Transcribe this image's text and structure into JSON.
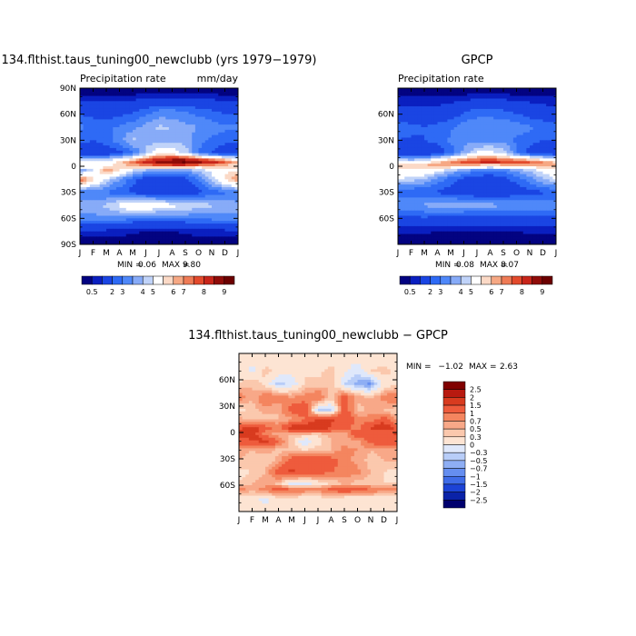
{
  "chart_data": [
    {
      "type": "heatmap",
      "title": "134.flthist.taus_tuning00_newclubb (yrs 1979−1979)",
      "subtitle_left": "Precipitation rate",
      "units": "mm/day",
      "x_ticks": [
        "J",
        "F",
        "M",
        "A",
        "M",
        "J",
        "J",
        "A",
        "S",
        "O",
        "N",
        "D",
        "J"
      ],
      "y_ticks": [
        "90N",
        "60N",
        "30N",
        "0",
        "30S",
        "60S",
        "90S"
      ],
      "stats": {
        "min_label": "MIN =",
        "min": "0.06",
        "max_label": "MAX =",
        "max": "9.80"
      },
      "colorbar_labels": [
        "0.5",
        "2",
        "3",
        "4",
        "5",
        "6",
        "7",
        "8",
        "9"
      ],
      "colors": [
        "#030381",
        "#0a1fc0",
        "#1a45e3",
        "#2e6af5",
        "#4f88f9",
        "#87abf8",
        "#c0d3f9",
        "#ffffff",
        "#fbd9c6",
        "#f6a884",
        "#ef7b56",
        "#e34a2c",
        "#c8251a",
        "#900c09",
        "#6c0000"
      ],
      "series": {
        "rows": [
          {
            "lat": 85,
            "values": [
              0.3,
              0.3,
              0.3,
              0.3,
              0.3,
              0.3,
              0.3,
              0.3,
              0.3,
              0.3,
              0.3,
              0.3,
              0.3
            ]
          },
          {
            "lat": 65,
            "values": [
              1.8,
              1.6,
              1.6,
              1.6,
              1.8,
              2.2,
              2.5,
              2.5,
              2.4,
              2.2,
              2.0,
              1.8,
              1.8
            ]
          },
          {
            "lat": 45,
            "values": [
              2.6,
              2.4,
              2.3,
              2.6,
              2.8,
              3.2,
              3.6,
              3.5,
              3.2,
              3.0,
              2.8,
              2.6,
              2.6
            ]
          },
          {
            "lat": 30,
            "values": [
              2.2,
              2.0,
              2.3,
              2.8,
              3.6,
              3.4,
              3.1,
              3.2,
              3.3,
              2.6,
              2.4,
              2.2,
              2.2
            ]
          },
          {
            "lat": 15,
            "values": [
              1.5,
              1.3,
              1.5,
              1.8,
              2.3,
              3.5,
              4.6,
              4.5,
              3.8,
              2.5,
              1.9,
              1.5,
              1.5
            ]
          },
          {
            "lat": 5,
            "values": [
              4.8,
              4.6,
              4.4,
              5.2,
              6.2,
              7.6,
              8.6,
              9.2,
              9.4,
              8.6,
              7.6,
              6.8,
              5.5
            ]
          },
          {
            "lat": 0,
            "values": [
              4.5,
              4.3,
              4.8,
              5.2,
              5.6,
              5.8,
              5.9,
              6.1,
              6.0,
              5.6,
              5.5,
              5.2,
              5.0
            ]
          },
          {
            "lat": -5,
            "values": [
              3.0,
              4.0,
              6.2,
              5.0,
              3.8,
              3.2,
              2.9,
              2.9,
              3.0,
              3.5,
              4.2,
              4.8,
              5.0
            ]
          },
          {
            "lat": -15,
            "values": [
              6.6,
              5.2,
              3.8,
              3.0,
              2.2,
              1.6,
              1.3,
              1.3,
              1.8,
              2.5,
              3.6,
              5.0,
              6.2
            ]
          },
          {
            "lat": -30,
            "values": [
              2.5,
              2.5,
              2.4,
              2.2,
              1.8,
              1.5,
              1.4,
              1.5,
              1.6,
              1.8,
              2.2,
              2.4,
              2.5
            ]
          },
          {
            "lat": -45,
            "values": [
              3.2,
              3.4,
              3.6,
              4.2,
              4.8,
              4.8,
              4.5,
              4.2,
              4.0,
              3.8,
              3.6,
              3.3,
              3.2
            ]
          },
          {
            "lat": -60,
            "values": [
              2.8,
              2.8,
              2.9,
              2.8,
              2.6,
              2.4,
              2.4,
              2.5,
              2.6,
              2.6,
              2.7,
              2.8,
              2.8
            ]
          },
          {
            "lat": -75,
            "values": [
              0.8,
              0.8,
              0.8,
              0.7,
              0.6,
              0.5,
              0.5,
              0.5,
              0.6,
              0.7,
              0.8,
              0.8,
              0.8
            ]
          },
          {
            "lat": -88,
            "values": [
              0.2,
              0.2,
              0.2,
              0.2,
              0.2,
              0.2,
              0.2,
              0.2,
              0.2,
              0.2,
              0.2,
              0.2,
              0.2
            ]
          }
        ]
      }
    },
    {
      "type": "heatmap",
      "title": "GPCP",
      "subtitle_left": "Precipitation rate",
      "x_ticks": [
        "J",
        "F",
        "M",
        "A",
        "M",
        "J",
        "J",
        "A",
        "S",
        "O",
        "N",
        "D",
        "J"
      ],
      "y_ticks": [
        "60N",
        "30N",
        "0",
        "30S",
        "60S"
      ],
      "stats": {
        "min_label": "MIN =",
        "min": "0.08",
        "max_label": "MAX =",
        "max": "8.07"
      },
      "colorbar_labels": [
        "0.5",
        "2",
        "3",
        "4",
        "5",
        "6",
        "7",
        "8",
        "9"
      ],
      "colors": [
        "#030381",
        "#0a1fc0",
        "#1a45e3",
        "#2e6af5",
        "#4f88f9",
        "#87abf8",
        "#c0d3f9",
        "#ffffff",
        "#fbd9c6",
        "#f6a884",
        "#ef7b56",
        "#e34a2c",
        "#c8251a",
        "#900c09",
        "#6c0000"
      ],
      "series": {
        "rows": [
          {
            "lat": 85,
            "values": [
              0.3,
              0.3,
              0.3,
              0.3,
              0.3,
              0.3,
              0.3,
              0.3,
              0.3,
              0.3,
              0.3,
              0.3,
              0.3
            ]
          },
          {
            "lat": 65,
            "values": [
              1.2,
              1.1,
              1.1,
              1.2,
              1.4,
              1.8,
              2.1,
              2.1,
              2.0,
              1.8,
              1.5,
              1.3,
              1.2
            ]
          },
          {
            "lat": 45,
            "values": [
              2.4,
              2.2,
              2.0,
              2.2,
              2.4,
              2.8,
              3.0,
              3.0,
              2.9,
              2.8,
              2.6,
              2.4,
              2.4
            ]
          },
          {
            "lat": 30,
            "values": [
              2.0,
              1.9,
              2.0,
              2.2,
              2.6,
              2.8,
              2.7,
              2.8,
              2.8,
              2.4,
              2.2,
              2.0,
              2.0
            ]
          },
          {
            "lat": 15,
            "values": [
              1.4,
              1.2,
              1.3,
              1.6,
              2.2,
              3.2,
              4.2,
              4.3,
              3.8,
              2.6,
              1.8,
              1.5,
              1.4
            ]
          },
          {
            "lat": 5,
            "values": [
              4.4,
              4.2,
              4.5,
              5.3,
              6.1,
              6.8,
              7.2,
              7.4,
              7.2,
              7.0,
              6.6,
              6.0,
              5.2
            ]
          },
          {
            "lat": 0,
            "values": [
              5.8,
              5.6,
              5.8,
              5.9,
              5.6,
              5.2,
              4.8,
              4.6,
              4.8,
              5.0,
              5.4,
              5.6,
              5.8
            ]
          },
          {
            "lat": -5,
            "values": [
              4.8,
              4.6,
              4.7,
              4.2,
              3.5,
              3.0,
              2.6,
              2.4,
              2.6,
              3.0,
              3.6,
              4.2,
              4.8
            ]
          },
          {
            "lat": -15,
            "values": [
              4.0,
              3.8,
              3.4,
              2.8,
              2.2,
              1.8,
              1.6,
              1.6,
              1.8,
              2.2,
              2.8,
              3.4,
              4.0
            ]
          },
          {
            "lat": -30,
            "values": [
              2.0,
              2.0,
              2.0,
              1.9,
              1.7,
              1.5,
              1.4,
              1.4,
              1.5,
              1.6,
              1.8,
              1.9,
              2.0
            ]
          },
          {
            "lat": -45,
            "values": [
              3.0,
              3.0,
              3.1,
              3.2,
              3.4,
              3.4,
              3.3,
              3.2,
              3.1,
              3.0,
              3.0,
              3.0,
              3.0
            ]
          },
          {
            "lat": -60,
            "values": [
              1.8,
              1.8,
              1.9,
              1.8,
              1.7,
              1.6,
              1.6,
              1.7,
              1.7,
              1.7,
              1.8,
              1.8,
              1.8
            ]
          },
          {
            "lat": -75,
            "values": [
              0.6,
              0.6,
              0.6,
              0.5,
              0.5,
              0.4,
              0.4,
              0.4,
              0.5,
              0.5,
              0.6,
              0.6,
              0.6
            ]
          },
          {
            "lat": -88,
            "values": [
              0.2,
              0.2,
              0.2,
              0.2,
              0.2,
              0.2,
              0.2,
              0.2,
              0.2,
              0.2,
              0.2,
              0.2,
              0.2
            ]
          }
        ]
      }
    },
    {
      "type": "heatmap",
      "title": "134.flthist.taus_tuning00_newclubb − GPCP",
      "x_ticks": [
        "J",
        "F",
        "M",
        "A",
        "M",
        "J",
        "J",
        "A",
        "S",
        "O",
        "N",
        "D",
        "J"
      ],
      "y_ticks": [
        "60N",
        "30N",
        "0",
        "30S",
        "60S"
      ],
      "stats": {
        "min_label": "MIN =",
        "min": "−1.02",
        "max_label": "MAX =",
        "max": "2.63"
      },
      "colorbar_labels": [
        "2.5",
        "2",
        "1.5",
        "1",
        "0.7",
        "0.5",
        "0.3",
        "0",
        "−0.3",
        "−0.5",
        "−0.7",
        "−1",
        "−1.5",
        "−2",
        "−2.5"
      ],
      "colors": [
        "#800000",
        "#b81a10",
        "#d83b1f",
        "#ee5b3c",
        "#f4855f",
        "#f8a888",
        "#fbc8ad",
        "#fde4d3",
        "#dfe8fb",
        "#b8cdf8",
        "#8eaef4",
        "#658ef0",
        "#3f6ce8",
        "#1c43d6",
        "#0a22a8",
        "#00006e"
      ],
      "series": {
        "rows": [
          {
            "lat": 85,
            "values": [
              0.1,
              0.1,
              0.1,
              0.1,
              0.1,
              0.1,
              0.1,
              0.1,
              0.1,
              0.1,
              0.1,
              0.1,
              0.1
            ]
          },
          {
            "lat": 70,
            "values": [
              0.2,
              -0.1,
              0.4,
              0.2,
              0.1,
              0.3,
              0.2,
              0.4,
              0.1,
              -0.2,
              0.3,
              0.4,
              0.2
            ]
          },
          {
            "lat": 55,
            "values": [
              0.3,
              0.5,
              0.2,
              -0.4,
              -0.2,
              0.3,
              0.4,
              0.5,
              -0.3,
              -0.6,
              -0.8,
              0.1,
              0.3
            ]
          },
          {
            "lat": 40,
            "values": [
              0.9,
              0.5,
              1.0,
              0.8,
              0.7,
              0.8,
              1.0,
              0.4,
              1.2,
              0.6,
              0.5,
              0.8,
              1.0
            ]
          },
          {
            "lat": 25,
            "values": [
              0.2,
              0.4,
              0.6,
              0.5,
              1.2,
              1.4,
              -0.4,
              -0.5,
              1.3,
              0.4,
              0.6,
              0.5,
              0.3
            ]
          },
          {
            "lat": 15,
            "values": [
              0.6,
              0.3,
              0.4,
              0.5,
              0.6,
              0.9,
              1.5,
              1.6,
              1.4,
              0.9,
              0.8,
              1.2,
              0.6
            ]
          },
          {
            "lat": 5,
            "values": [
              1.4,
              1.8,
              1.2,
              0.9,
              1.8,
              2.1,
              2.0,
              1.4,
              1.2,
              0.8,
              1.6,
              2.0,
              1.3
            ]
          },
          {
            "lat": -2,
            "values": [
              1.6,
              1.9,
              0.8,
              0.6,
              0.4,
              0.5,
              0.3,
              0.6,
              0.5,
              1.4,
              1.2,
              1.0,
              1.6
            ]
          },
          {
            "lat": -10,
            "values": [
              1.2,
              1.4,
              1.8,
              1.0,
              0.4,
              -0.3,
              0.2,
              0.5,
              0.6,
              0.5,
              1.2,
              1.4,
              1.3
            ]
          },
          {
            "lat": -20,
            "values": [
              0.6,
              0.5,
              0.6,
              0.4,
              0.5,
              0.3,
              0.4,
              0.5,
              0.8,
              0.7,
              0.5,
              0.6,
              0.6
            ]
          },
          {
            "lat": -32,
            "values": [
              0.5,
              0.4,
              0.3,
              0.6,
              1.2,
              1.4,
              1.5,
              1.2,
              0.8,
              0.6,
              0.4,
              0.5,
              0.5
            ]
          },
          {
            "lat": -45,
            "values": [
              0.2,
              0.3,
              0.5,
              1.2,
              1.6,
              1.4,
              1.2,
              1.0,
              0.9,
              0.8,
              0.5,
              0.3,
              0.2
            ]
          },
          {
            "lat": -58,
            "values": [
              0.3,
              0.5,
              0.6,
              0.4,
              -0.2,
              -0.3,
              0.1,
              0.3,
              0.5,
              0.4,
              0.4,
              0.3,
              0.3
            ]
          },
          {
            "lat": -65,
            "values": [
              0.8,
              0.6,
              0.8,
              1.2,
              1.0,
              0.9,
              0.8,
              1.1,
              1.4,
              1.2,
              1.0,
              0.8,
              0.8
            ]
          },
          {
            "lat": -75,
            "values": [
              0.2,
              0.1,
              -0.1,
              0.2,
              0.3,
              0.1,
              0.2,
              0.2,
              0.1,
              0.0,
              0.1,
              0.2,
              0.2
            ]
          },
          {
            "lat": -88,
            "values": [
              0.1,
              0.1,
              0.1,
              0.1,
              0.1,
              0.1,
              0.1,
              0.1,
              0.1,
              0.1,
              0.1,
              0.1,
              0.1
            ]
          }
        ]
      }
    }
  ]
}
